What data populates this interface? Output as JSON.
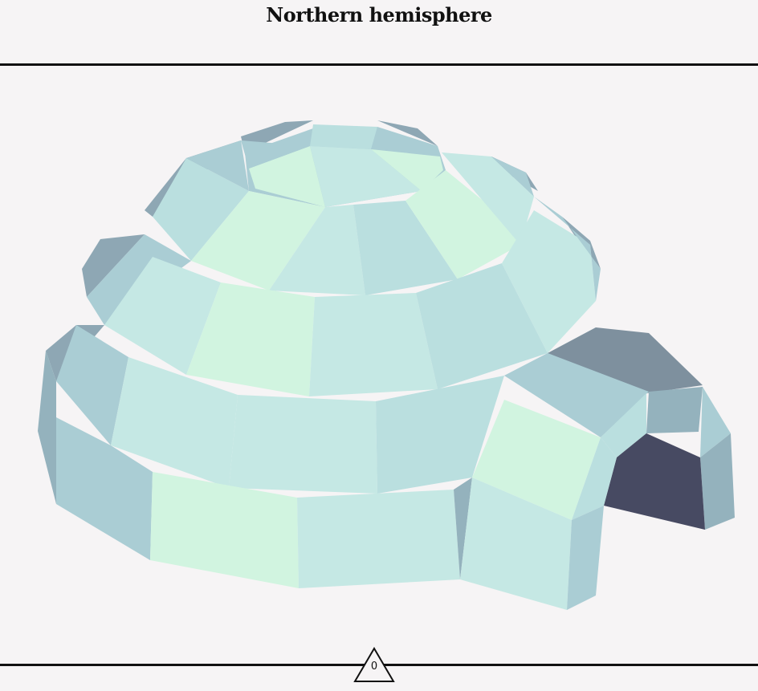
{
  "header": {
    "title": "Northern hemisphere"
  },
  "footer": {
    "counter_value": "0",
    "counter_icon": "triangle-icon"
  },
  "scene": {
    "subject": "igloo",
    "colors": {
      "background": "#f6f4f5",
      "rule": "#111111",
      "ice_mint": "#d1f4e0",
      "ice_pale": "#c5e8e4",
      "ice_light": "#badfdf",
      "ice_mid": "#aacdd4",
      "ice_shadow": "#94b2bd",
      "ice_dark": "#7e909e",
      "entrance_shadow": "#474a62"
    }
  }
}
